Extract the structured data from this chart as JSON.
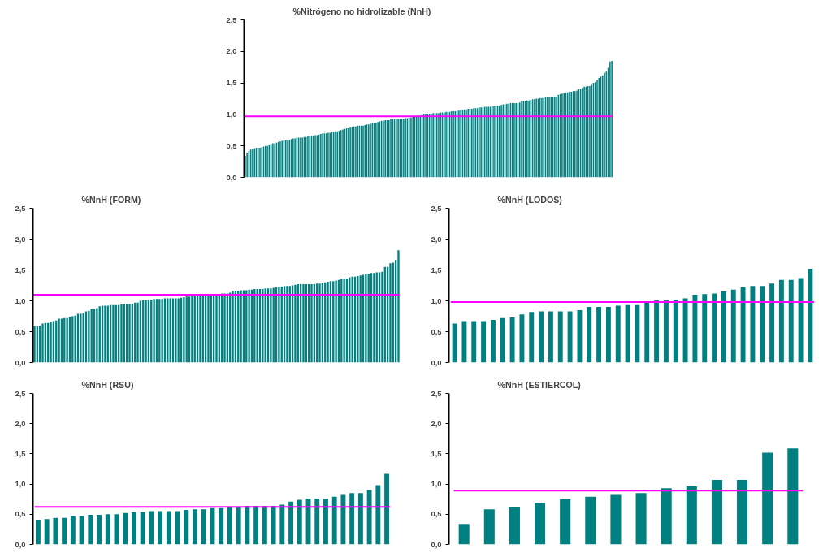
{
  "chart_data": [
    {
      "type": "bar",
      "title": "%Nitrógeno no hidrolizable (NnH)",
      "color": "#008080",
      "tick_labels": "y",
      "categories": [
        null,
        null,
        null,
        null,
        null,
        null,
        null,
        null,
        null,
        null,
        null,
        null,
        null,
        null,
        null,
        null,
        null,
        null,
        null,
        null,
        null,
        null,
        null,
        null,
        null,
        null,
        null,
        null,
        null,
        null,
        null,
        null,
        null,
        null,
        null,
        null,
        null,
        null,
        null,
        null,
        null,
        null,
        null,
        null,
        null,
        null,
        null,
        null,
        null,
        null,
        null,
        null,
        null,
        null,
        null,
        null,
        null,
        null,
        null,
        null,
        null,
        null,
        null,
        null,
        null,
        null,
        null,
        null,
        null,
        null,
        null,
        null,
        null,
        null,
        null,
        null,
        null,
        null,
        null,
        null,
        null,
        null,
        null,
        null,
        null,
        null,
        null,
        null,
        null,
        null,
        null,
        null,
        null,
        null,
        null,
        null,
        null,
        null,
        null,
        null,
        null,
        null,
        null,
        null,
        null,
        null,
        null,
        null,
        null,
        null,
        null,
        null,
        null,
        null,
        null,
        null,
        null,
        null,
        null,
        null,
        null,
        null,
        null,
        null,
        null,
        null,
        null,
        null,
        null,
        null,
        null,
        null,
        null,
        null,
        null,
        null,
        null,
        null,
        null,
        null,
        null,
        null,
        null,
        null,
        null,
        null,
        null,
        null,
        null,
        null,
        null,
        null,
        null,
        null,
        null,
        null,
        null,
        null,
        null,
        null,
        null,
        null,
        null,
        null,
        null,
        null,
        null,
        null,
        null,
        null,
        null,
        null,
        null,
        null,
        null,
        null,
        null,
        null,
        null,
        null,
        null,
        null,
        null,
        null,
        null,
        null,
        null,
        null,
        null,
        null,
        null,
        null,
        null,
        null,
        null,
        null,
        null,
        null,
        null,
        null
      ],
      "values": [
        0.34,
        0.39,
        0.42,
        0.44,
        0.45,
        0.46,
        0.47,
        0.47,
        0.47,
        0.48,
        0.49,
        0.5,
        0.5,
        0.52,
        0.53,
        0.54,
        0.54,
        0.55,
        0.56,
        0.57,
        0.58,
        0.59,
        0.59,
        0.59,
        0.6,
        0.61,
        0.62,
        0.62,
        0.63,
        0.63,
        0.63,
        0.63,
        0.64,
        0.64,
        0.65,
        0.65,
        0.66,
        0.66,
        0.67,
        0.67,
        0.68,
        0.69,
        0.7,
        0.7,
        0.7,
        0.71,
        0.71,
        0.72,
        0.72,
        0.73,
        0.73,
        0.74,
        0.75,
        0.76,
        0.77,
        0.78,
        0.78,
        0.79,
        0.8,
        0.81,
        0.81,
        0.82,
        0.82,
        0.82,
        0.82,
        0.83,
        0.84,
        0.84,
        0.85,
        0.86,
        0.86,
        0.87,
        0.88,
        0.89,
        0.9,
        0.9,
        0.91,
        0.91,
        0.91,
        0.92,
        0.92,
        0.92,
        0.93,
        0.93,
        0.93,
        0.93,
        0.93,
        0.94,
        0.94,
        0.95,
        0.95,
        0.96,
        0.97,
        0.97,
        0.98,
        0.98,
        0.99,
        1.0,
        1.0,
        1.01,
        1.01,
        1.01,
        1.02,
        1.02,
        1.02,
        1.02,
        1.03,
        1.03,
        1.03,
        1.04,
        1.04,
        1.04,
        1.05,
        1.05,
        1.05,
        1.06,
        1.06,
        1.07,
        1.07,
        1.08,
        1.08,
        1.09,
        1.09,
        1.09,
        1.1,
        1.1,
        1.1,
        1.11,
        1.11,
        1.11,
        1.12,
        1.12,
        1.12,
        1.12,
        1.13,
        1.13,
        1.13,
        1.14,
        1.14,
        1.15,
        1.16,
        1.16,
        1.17,
        1.17,
        1.18,
        1.18,
        1.18,
        1.18,
        1.18,
        1.19,
        1.21,
        1.21,
        1.21,
        1.22,
        1.22,
        1.23,
        1.24,
        1.24,
        1.25,
        1.25,
        1.26,
        1.26,
        1.26,
        1.27,
        1.27,
        1.27,
        1.27,
        1.28,
        1.28,
        1.28,
        1.31,
        1.32,
        1.33,
        1.34,
        1.35,
        1.35,
        1.36,
        1.36,
        1.37,
        1.37,
        1.38,
        1.4,
        1.4,
        1.42,
        1.44,
        1.44,
        1.45,
        1.45,
        1.47,
        1.5,
        1.51,
        1.54,
        1.58,
        1.6,
        1.62,
        1.66,
        1.68,
        1.74,
        1.84,
        1.85
      ],
      "ylim": [
        0,
        2.5
      ],
      "yticks": [
        {
          "value": 0,
          "label": "0,0"
        },
        {
          "value": 0.5,
          "label": "0,5"
        },
        {
          "value": 1,
          "label": "1,0"
        },
        {
          "value": 1.5,
          "label": "1,5"
        },
        {
          "value": 2,
          "label": "2,0"
        },
        {
          "value": 2.5,
          "label": "2,5"
        }
      ],
      "ref_lines": [
        {
          "axis": "y",
          "value": 0.97,
          "color": "#ff00ff"
        }
      ]
    },
    {
      "type": "bar",
      "title": "%NnH (FORM)",
      "color": "#008080",
      "tick_labels": "y",
      "categories": [
        null,
        null,
        null,
        null,
        null,
        null,
        null,
        null,
        null,
        null,
        null,
        null,
        null,
        null,
        null,
        null,
        null,
        null,
        null,
        null,
        null,
        null,
        null,
        null,
        null,
        null,
        null,
        null,
        null,
        null,
        null,
        null,
        null,
        null,
        null,
        null,
        null,
        null,
        null,
        null,
        null,
        null,
        null,
        null,
        null,
        null,
        null,
        null,
        null,
        null,
        null,
        null,
        null,
        null,
        null,
        null,
        null,
        null,
        null,
        null,
        null,
        null,
        null,
        null,
        null,
        null,
        null,
        null,
        null,
        null,
        null,
        null,
        null,
        null,
        null,
        null,
        null,
        null,
        null,
        null,
        null,
        null,
        null,
        null,
        null,
        null,
        null,
        null,
        null,
        null,
        null,
        null,
        null,
        null,
        null,
        null,
        null,
        null,
        null,
        null,
        null,
        null,
        null,
        null,
        null,
        null,
        null,
        null,
        null,
        null,
        null,
        null,
        null,
        null,
        null,
        null,
        null,
        null,
        null,
        null,
        null,
        null,
        null,
        null,
        null,
        null,
        null,
        null,
        null,
        null,
        null,
        null,
        null,
        null,
        null
      ],
      "values": [
        0.59,
        0.59,
        0.6,
        0.63,
        0.64,
        0.64,
        0.66,
        0.67,
        0.68,
        0.71,
        0.71,
        0.72,
        0.72,
        0.74,
        0.75,
        0.76,
        0.79,
        0.79,
        0.8,
        0.83,
        0.84,
        0.87,
        0.87,
        0.88,
        0.91,
        0.92,
        0.92,
        0.92,
        0.93,
        0.93,
        0.93,
        0.93,
        0.94,
        0.95,
        0.95,
        0.95,
        0.95,
        0.97,
        0.97,
        1.0,
        1.01,
        1.01,
        1.01,
        1.02,
        1.03,
        1.03,
        1.03,
        1.03,
        1.04,
        1.04,
        1.04,
        1.04,
        1.04,
        1.04,
        1.05,
        1.06,
        1.07,
        1.07,
        1.08,
        1.08,
        1.09,
        1.1,
        1.1,
        1.1,
        1.1,
        1.1,
        1.11,
        1.11,
        1.11,
        1.12,
        1.12,
        1.12,
        1.13,
        1.16,
        1.16,
        1.16,
        1.17,
        1.17,
        1.17,
        1.18,
        1.18,
        1.19,
        1.19,
        1.19,
        1.19,
        1.2,
        1.2,
        1.2,
        1.21,
        1.22,
        1.23,
        1.23,
        1.24,
        1.24,
        1.24,
        1.25,
        1.26,
        1.27,
        1.27,
        1.27,
        1.27,
        1.27,
        1.27,
        1.27,
        1.28,
        1.28,
        1.29,
        1.3,
        1.31,
        1.32,
        1.32,
        1.33,
        1.34,
        1.36,
        1.36,
        1.36,
        1.38,
        1.39,
        1.39,
        1.4,
        1.41,
        1.42,
        1.43,
        1.44,
        1.45,
        1.45,
        1.46,
        1.46,
        1.47,
        1.55,
        1.55,
        1.61,
        1.62,
        1.66,
        1.82
      ],
      "ylim": [
        0,
        2.5
      ],
      "yticks": [
        {
          "value": 0,
          "label": "0,0"
        },
        {
          "value": 0.5,
          "label": "0,5"
        },
        {
          "value": 1,
          "label": "1,0"
        },
        {
          "value": 1.5,
          "label": "1,5"
        },
        {
          "value": 2,
          "label": "2,0"
        },
        {
          "value": 2.5,
          "label": "2,5"
        }
      ],
      "ref_lines": [
        {
          "axis": "y",
          "value": 1.1,
          "color": "#ff00ff"
        }
      ]
    },
    {
      "type": "bar",
      "title": "%NnH  (LODOS)",
      "color": "#008080",
      "tick_labels": "y",
      "categories": [
        null,
        null,
        null,
        null,
        null,
        null,
        null,
        null,
        null,
        null,
        null,
        null,
        null,
        null,
        null,
        null,
        null,
        null,
        null,
        null,
        null,
        null,
        null,
        null,
        null,
        null,
        null,
        null,
        null,
        null,
        null,
        null,
        null,
        null,
        null,
        null,
        null,
        null
      ],
      "values": [
        0.63,
        0.67,
        0.67,
        0.67,
        0.69,
        0.72,
        0.73,
        0.78,
        0.82,
        0.83,
        0.83,
        0.83,
        0.83,
        0.85,
        0.9,
        0.9,
        0.9,
        0.92,
        0.93,
        0.93,
        0.97,
        1.01,
        1.01,
        1.02,
        1.04,
        1.1,
        1.11,
        1.12,
        1.15,
        1.18,
        1.22,
        1.24,
        1.24,
        1.28,
        1.34,
        1.34,
        1.37,
        1.52
      ],
      "ylim": [
        0,
        2.5
      ],
      "yticks": [
        {
          "value": 0,
          "label": "0,0"
        },
        {
          "value": 0.5,
          "label": "0,5"
        },
        {
          "value": 1,
          "label": "1,0"
        },
        {
          "value": 1.5,
          "label": "1,5"
        },
        {
          "value": 2,
          "label": "2,0"
        },
        {
          "value": 2.5,
          "label": "2,5"
        }
      ],
      "ref_lines": [
        {
          "axis": "y",
          "value": 0.98,
          "color": "#ff00ff"
        }
      ]
    },
    {
      "type": "bar",
      "title": "%NnH (RSU)",
      "color": "#008080",
      "tick_labels": "y",
      "categories": [
        null,
        null,
        null,
        null,
        null,
        null,
        null,
        null,
        null,
        null,
        null,
        null,
        null,
        null,
        null,
        null,
        null,
        null,
        null,
        null,
        null,
        null,
        null,
        null,
        null,
        null,
        null,
        null,
        null,
        null,
        null,
        null,
        null,
        null,
        null,
        null,
        null,
        null,
        null,
        null,
        null
      ],
      "values": [
        0.41,
        0.42,
        0.44,
        0.44,
        0.47,
        0.47,
        0.49,
        0.49,
        0.5,
        0.5,
        0.52,
        0.53,
        0.53,
        0.55,
        0.55,
        0.55,
        0.55,
        0.57,
        0.58,
        0.58,
        0.6,
        0.6,
        0.62,
        0.62,
        0.64,
        0.64,
        0.64,
        0.64,
        0.66,
        0.71,
        0.74,
        0.76,
        0.76,
        0.76,
        0.79,
        0.82,
        0.85,
        0.85,
        0.9,
        0.98,
        1.17
      ],
      "ylim": [
        0,
        2.5
      ],
      "yticks": [
        {
          "value": 0,
          "label": "0,0"
        },
        {
          "value": 0.5,
          "label": "0,5"
        },
        {
          "value": 1,
          "label": "1,0"
        },
        {
          "value": 1.5,
          "label": "1,5"
        },
        {
          "value": 2,
          "label": "2,0"
        },
        {
          "value": 2.5,
          "label": "2,5"
        }
      ],
      "ref_lines": [
        {
          "axis": "y",
          "value": 0.62,
          "color": "#ff00ff"
        }
      ]
    },
    {
      "type": "bar",
      "title": "%NnH (ESTIERCOL)",
      "color": "#008080",
      "tick_labels": "y",
      "categories": [
        null,
        null,
        null,
        null,
        null,
        null,
        null,
        null,
        null,
        null,
        null,
        null,
        null,
        null
      ],
      "values": [
        0.34,
        0.58,
        0.61,
        0.69,
        0.75,
        0.79,
        0.82,
        0.85,
        0.93,
        0.96,
        1.07,
        1.07,
        1.52,
        1.59
      ],
      "ylim": [
        0,
        2.5
      ],
      "yticks": [
        {
          "value": 0,
          "label": "0,0"
        },
        {
          "value": 0.5,
          "label": "0,5"
        },
        {
          "value": 1,
          "label": "1,0"
        },
        {
          "value": 1.5,
          "label": "1,5"
        },
        {
          "value": 2,
          "label": "2,0"
        },
        {
          "value": 2.5,
          "label": "2,5"
        }
      ],
      "ref_lines": [
        {
          "axis": "y",
          "value": 0.89,
          "color": "#ff00ff"
        }
      ]
    }
  ]
}
